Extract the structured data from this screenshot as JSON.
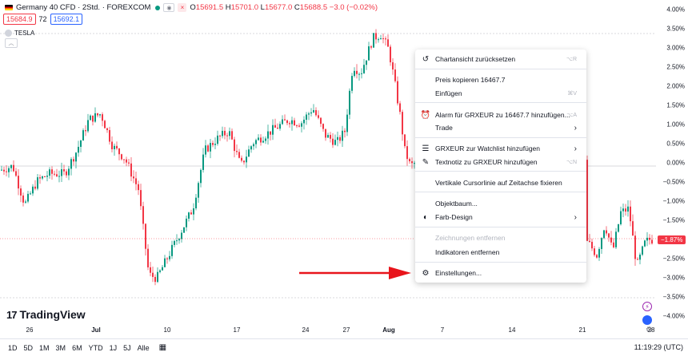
{
  "legend": {
    "title": "Germany 40 CFD · 2Std. · FOREXCOM",
    "ohlc": [
      {
        "k": "O",
        "v": "15691.5"
      },
      {
        "k": "H",
        "v": "15701.0"
      },
      {
        "k": "L",
        "v": "15677.0"
      },
      {
        "k": "C",
        "v": "15688.5"
      }
    ],
    "change": "−3.0 (−0.02%)",
    "sell_price": "15684.9",
    "spread": "72",
    "buy_price": "15692.1",
    "compare_symbol": "TESLA"
  },
  "price_axis": {
    "labels": [
      "4.00%",
      "3.50%",
      "3.00%",
      "2.50%",
      "2.00%",
      "1.50%",
      "1.00%",
      "0.50%",
      "0.00%",
      "−0.50%",
      "−1.00%",
      "−1.50%",
      "−2.00%",
      "−2.50%",
      "−3.00%",
      "−3.50%",
      "−4.00%"
    ],
    "current": "−1.87%"
  },
  "time_axis": {
    "labels": [
      {
        "text": "26",
        "bold": false
      },
      {
        "text": "Jul",
        "bold": true
      },
      {
        "text": "10",
        "bold": false
      },
      {
        "text": "17",
        "bold": false
      },
      {
        "text": "24",
        "bold": false
      },
      {
        "text": "27",
        "bold": false
      },
      {
        "text": "Aug",
        "bold": true
      },
      {
        "text": "7",
        "bold": false
      },
      {
        "text": "14",
        "bold": false
      },
      {
        "text": "21",
        "bold": false
      },
      {
        "text": "28",
        "bold": false
      }
    ]
  },
  "timeframes": [
    "1D",
    "5D",
    "1M",
    "3M",
    "6M",
    "YTD",
    "1J",
    "5J",
    "Alle"
  ],
  "clock": "11:19:29 (UTC)",
  "brand": "TradingView",
  "context_menu": {
    "reset": {
      "label": "Chartansicht zurücksetzen",
      "shortcut": "⌥R"
    },
    "copy_price": {
      "label": "Preis kopieren 16467.7"
    },
    "paste": {
      "label": "Einfügen",
      "shortcut": "⌘V"
    },
    "alarm": {
      "label": "Alarm für GRXEUR zu 16467.7 hinzufügen...",
      "shortcut": "⌥A"
    },
    "trade": {
      "label": "Trade"
    },
    "watchlist": {
      "label": "GRXEUR zur Watchlist hinzufügen"
    },
    "textnote": {
      "label": "Textnotiz zu GRXEUR hinzufügen",
      "shortcut": "⌥N"
    },
    "vertical_cursor": {
      "label": "Vertikale Cursorlinie auf Zeitachse fixieren"
    },
    "object_tree": {
      "label": "Objektbaum..."
    },
    "color_theme": {
      "label": "Farb-Design"
    },
    "remove_drawings": {
      "label": "Zeichnungen entfernen"
    },
    "remove_indicators": {
      "label": "Indikatoren entfernen"
    },
    "settings": {
      "label": "Einstellungen..."
    }
  },
  "colors": {
    "up": "#089981",
    "down": "#f23645",
    "arrow": "#e8141b",
    "accent": "#2962ff"
  },
  "icons": [
    "reset-icon",
    "alarm-clock-icon",
    "watchlist-icon",
    "note-edit-icon",
    "palette-icon",
    "gear-icon",
    "calendar-icon",
    "chevron-right-icon"
  ]
}
